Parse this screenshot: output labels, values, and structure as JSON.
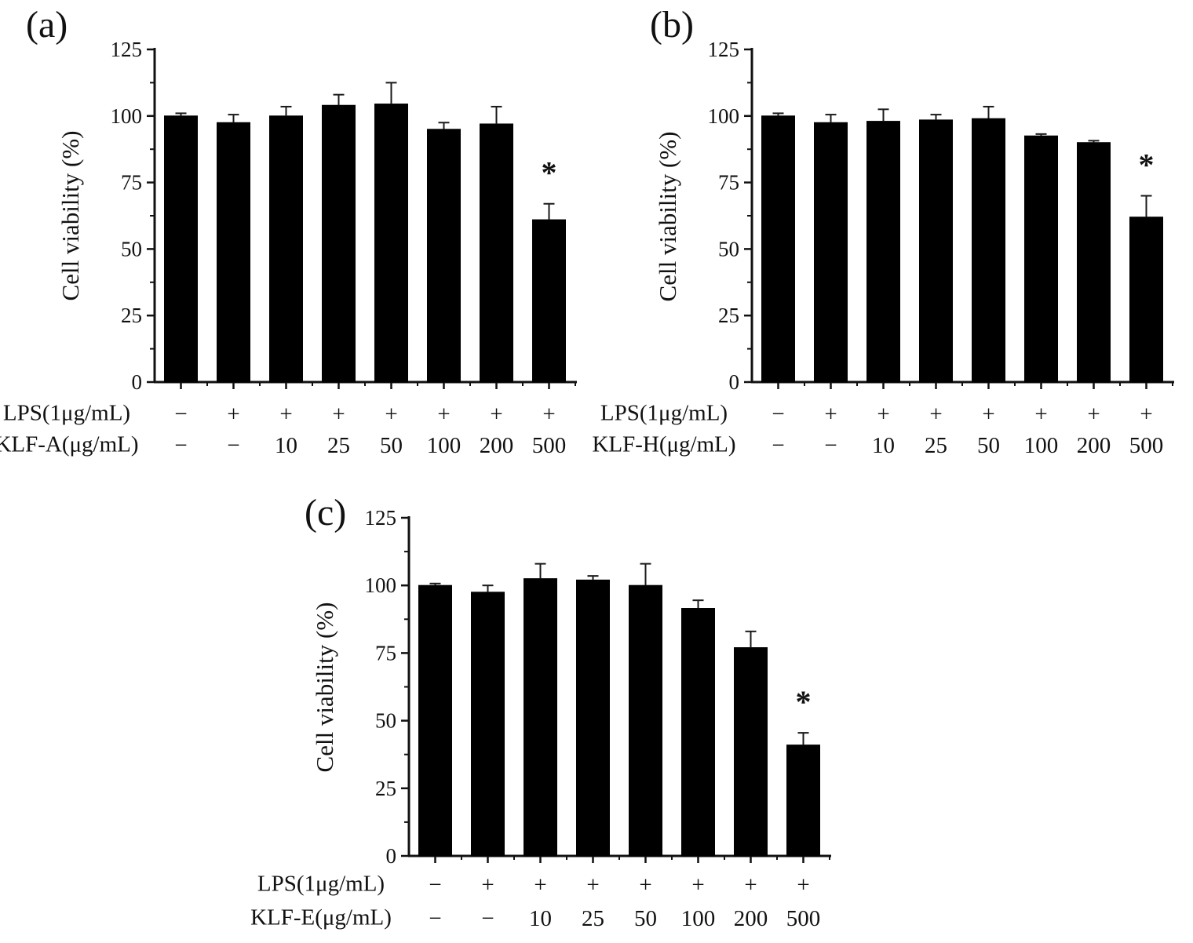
{
  "figure": {
    "background": "#ffffff",
    "bar_color": "#000000",
    "axis_color": "#111111",
    "error_bar_color": "#1a1a1a",
    "significance_marker": "*"
  },
  "chart_data": [
    {
      "type": "bar",
      "panel_label": "(a)",
      "title": "",
      "ylabel": "Cell viability (%)",
      "xlabel": "",
      "ylim": [
        0,
        125
      ],
      "yticks": [
        0,
        25,
        50,
        75,
        100,
        125
      ],
      "y_minor_ticks": [
        12.5,
        37.5,
        62.5,
        87.5,
        112.5
      ],
      "grid": "off",
      "legend": "none",
      "rows": [
        {
          "label": "LPS(1μg/mL)",
          "values": [
            "−",
            "+",
            "+",
            "+",
            "+",
            "+",
            "+",
            "+"
          ]
        },
        {
          "label": "KLF-A(μg/mL)",
          "values": [
            "−",
            "−",
            "10",
            "25",
            "50",
            "100",
            "200",
            "500"
          ]
        }
      ],
      "values": [
        100,
        97.5,
        100,
        104,
        104.5,
        95,
        97,
        61
      ],
      "errors": [
        1,
        3,
        3.5,
        4,
        8,
        2.5,
        6.5,
        6
      ],
      "significance": [
        "",
        "",
        "",
        "",
        "",
        "",
        "",
        "*"
      ]
    },
    {
      "type": "bar",
      "panel_label": "(b)",
      "title": "",
      "ylabel": "Cell viability (%)",
      "xlabel": "",
      "ylim": [
        0,
        125
      ],
      "yticks": [
        0,
        25,
        50,
        75,
        100,
        125
      ],
      "y_minor_ticks": [
        12.5,
        37.5,
        62.5,
        87.5,
        112.5
      ],
      "grid": "off",
      "legend": "none",
      "rows": [
        {
          "label": "LPS(1μg/mL)",
          "values": [
            "−",
            "+",
            "+",
            "+",
            "+",
            "+",
            "+",
            "+"
          ]
        },
        {
          "label": "KLF-H(μg/mL)",
          "values": [
            "−",
            "−",
            "10",
            "25",
            "50",
            "100",
            "200",
            "500"
          ]
        }
      ],
      "values": [
        100,
        97.5,
        98,
        98.5,
        99,
        92.5,
        90,
        62
      ],
      "errors": [
        1,
        3,
        4.5,
        2,
        4.5,
        0.7,
        0.7,
        8
      ],
      "significance": [
        "",
        "",
        "",
        "",
        "",
        "",
        "",
        "*"
      ]
    },
    {
      "type": "bar",
      "panel_label": "(c)",
      "title": "",
      "ylabel": "Cell viability (%)",
      "xlabel": "",
      "ylim": [
        0,
        125
      ],
      "yticks": [
        0,
        25,
        50,
        75,
        100,
        125
      ],
      "y_minor_ticks": [
        12.5,
        37.5,
        62.5,
        87.5,
        112.5
      ],
      "grid": "off",
      "legend": "none",
      "rows": [
        {
          "label": "LPS(1μg/mL)",
          "values": [
            "−",
            "+",
            "+",
            "+",
            "+",
            "+",
            "+",
            "+"
          ]
        },
        {
          "label": "KLF-E(μg/mL)",
          "values": [
            "−",
            "−",
            "10",
            "25",
            "50",
            "100",
            "200",
            "500"
          ]
        }
      ],
      "values": [
        100,
        97.5,
        102.5,
        102,
        100,
        91.5,
        77,
        41
      ],
      "errors": [
        0.7,
        2.5,
        5.5,
        1.5,
        8,
        3,
        6,
        4.5
      ],
      "significance": [
        "",
        "",
        "",
        "",
        "",
        "",
        "",
        "*"
      ]
    }
  ]
}
